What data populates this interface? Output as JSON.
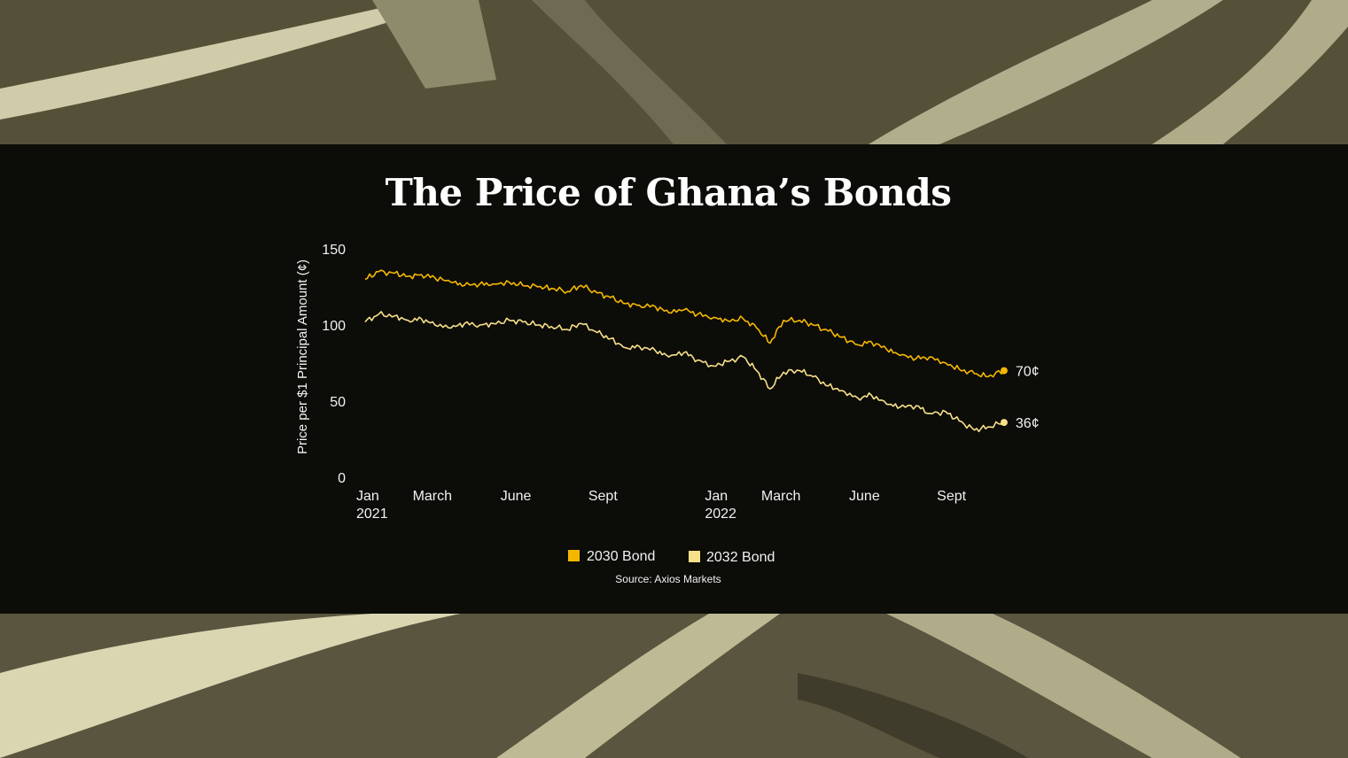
{
  "colors": {
    "band": "#060604",
    "bg_dark": "#4b4836",
    "bg_mid": "#6d6a52",
    "bg_light": "#e8e4bf",
    "series_2030": "#f5b800",
    "series_2032": "#f7e08a"
  },
  "chart_data": {
    "type": "line",
    "title": "The Price of Ghana’s Bonds",
    "ylabel": "Price per $1 Principal Amount (¢)",
    "xlabel": "",
    "ylim": [
      0,
      150
    ],
    "yticks": [
      0,
      50,
      100,
      150
    ],
    "xlim": [
      "2021-01-01",
      "2022-11-15"
    ],
    "xticks": [
      {
        "date": "2021-01-01",
        "label": "Jan",
        "label2": "2021"
      },
      {
        "date": "2021-03-01",
        "label": "March",
        "label2": ""
      },
      {
        "date": "2021-06-01",
        "label": "June",
        "label2": ""
      },
      {
        "date": "2021-09-01",
        "label": "Sept",
        "label2": ""
      },
      {
        "date": "2022-01-01",
        "label": "Jan",
        "label2": "2022"
      },
      {
        "date": "2022-03-01",
        "label": "March",
        "label2": ""
      },
      {
        "date": "2022-06-01",
        "label": "June",
        "label2": ""
      },
      {
        "date": "2022-09-01",
        "label": "Sept",
        "label2": ""
      }
    ],
    "grid": false,
    "legend_position": "bottom-center",
    "series": [
      {
        "name": "2030 Bond",
        "end_label": "70¢",
        "dates": [
          "2021-01-01",
          "2021-01-15",
          "2021-02-01",
          "2021-02-15",
          "2021-03-01",
          "2021-03-15",
          "2021-04-01",
          "2021-04-15",
          "2021-05-01",
          "2021-05-15",
          "2021-06-01",
          "2021-06-15",
          "2021-07-01",
          "2021-07-15",
          "2021-08-01",
          "2021-08-15",
          "2021-09-01",
          "2021-09-15",
          "2021-10-01",
          "2021-10-15",
          "2021-11-01",
          "2021-11-15",
          "2021-12-01",
          "2021-12-15",
          "2022-01-01",
          "2022-01-15",
          "2022-02-01",
          "2022-02-15",
          "2022-03-01",
          "2022-03-15",
          "2022-04-01",
          "2022-04-15",
          "2022-05-01",
          "2022-05-15",
          "2022-06-01",
          "2022-06-15",
          "2022-07-01",
          "2022-07-15",
          "2022-08-01",
          "2022-08-15",
          "2022-09-01",
          "2022-09-15",
          "2022-10-01",
          "2022-10-15",
          "2022-11-01"
        ],
        "values": [
          130,
          135,
          134,
          132,
          133,
          131,
          128,
          126,
          127,
          127,
          128,
          126,
          125,
          124,
          122,
          126,
          121,
          118,
          114,
          113,
          112,
          108,
          110,
          107,
          105,
          103,
          104,
          98,
          88,
          103,
          103,
          100,
          96,
          92,
          87,
          89,
          84,
          80,
          78,
          79,
          75,
          71,
          68,
          66,
          70
        ]
      },
      {
        "name": "2032 Bond",
        "end_label": "36¢",
        "dates": [
          "2021-01-01",
          "2021-01-15",
          "2021-02-01",
          "2021-02-15",
          "2021-03-01",
          "2021-03-15",
          "2021-04-01",
          "2021-04-15",
          "2021-05-01",
          "2021-05-15",
          "2021-06-01",
          "2021-06-15",
          "2021-07-01",
          "2021-07-15",
          "2021-08-01",
          "2021-08-15",
          "2021-09-01",
          "2021-09-15",
          "2021-10-01",
          "2021-10-15",
          "2021-11-01",
          "2021-11-15",
          "2021-12-01",
          "2021-12-15",
          "2022-01-01",
          "2022-01-15",
          "2022-02-01",
          "2022-02-15",
          "2022-03-01",
          "2022-03-15",
          "2022-04-01",
          "2022-04-15",
          "2022-05-01",
          "2022-05-15",
          "2022-06-01",
          "2022-06-15",
          "2022-07-01",
          "2022-07-15",
          "2022-08-01",
          "2022-08-15",
          "2022-09-01",
          "2022-09-15",
          "2022-10-01",
          "2022-10-15",
          "2022-11-01"
        ],
        "values": [
          102,
          107,
          106,
          103,
          104,
          100,
          98,
          101,
          100,
          101,
          103,
          102,
          100,
          99,
          97,
          101,
          95,
          91,
          85,
          86,
          83,
          79,
          82,
          77,
          73,
          76,
          79,
          70,
          58,
          69,
          70,
          66,
          60,
          57,
          52,
          54,
          48,
          46,
          47,
          42,
          43,
          37,
          31,
          33,
          36
        ]
      }
    ]
  },
  "source": "Source: Axios Markets"
}
